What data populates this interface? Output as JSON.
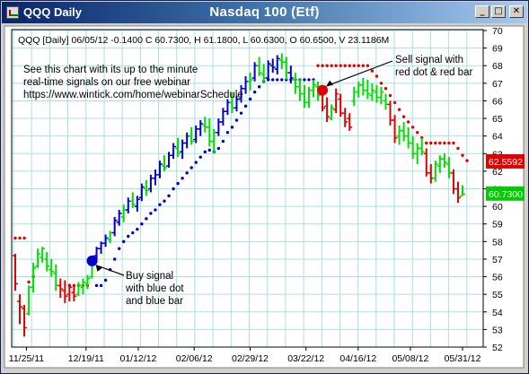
{
  "window": {
    "title_left": "QQQ Daily",
    "title_center": "Nasdaq 100 (Etf)",
    "buttons": {
      "minimize": "_",
      "maximize": "□",
      "close": "✕"
    },
    "colors": {
      "titlebar_start": "#0a246a",
      "titlebar_end": "#a6caf0",
      "grid": "#a8e0e0"
    }
  },
  "chart_data": {
    "type": "ohlc",
    "symbol": "QQQ",
    "info_line": "QQQ [Daily] 06/05/12  -0.1400 C 60.7300, H 61.1800, L 60.6300, O 60.6500, V 23.1186M",
    "annotations": {
      "webinar": [
        "See this chart with its up to the minute",
        "real-time signals on our free webinar",
        "https://www.wintick.com/home/webinarSchedule"
      ],
      "sell": [
        "Sell signal with",
        "red dot & red bar"
      ],
      "buy": [
        "Buy signal",
        "with blue dot",
        "and blue bar"
      ]
    },
    "ylim": [
      52,
      70
    ],
    "y_ticks": [
      "70",
      "69",
      "68",
      "67",
      "66",
      "65",
      "64",
      "63",
      "62",
      "61",
      "60",
      "59",
      "58",
      "57",
      "56",
      "55",
      "54",
      "53",
      "52"
    ],
    "x_ticks": [
      "11/25/11",
      "12/19/11",
      "01/12/12",
      "02/06/12",
      "02/29/12",
      "03/22/12",
      "04/16/12",
      "05/08/12",
      "05/31/12"
    ],
    "price_labels": [
      {
        "text": "62.5592",
        "value": 62.5592,
        "color": "#e00000"
      },
      {
        "text": "60.7300",
        "value": 60.73,
        "color": "#00cc00"
      }
    ],
    "bar_colors": {
      "up": "#00dd00",
      "down": "#e00000",
      "trend": "#0000cc",
      "red_dot": "#e00000",
      "blue_dot": "#0000cc"
    },
    "buy_signal": {
      "index": 17,
      "value": 56.9
    },
    "sell_signal": {
      "index": 68,
      "value": 66.6
    },
    "bars": [
      {
        "o": 57.2,
        "h": 57.3,
        "l": 55.2,
        "c": 55.6,
        "col": "d"
      },
      {
        "o": 54.6,
        "h": 55.0,
        "l": 53.3,
        "c": 54.3,
        "col": "d"
      },
      {
        "o": 54.2,
        "h": 54.4,
        "l": 52.6,
        "c": 53.1,
        "col": "d"
      },
      {
        "o": 53.9,
        "h": 55.5,
        "l": 53.8,
        "c": 55.4,
        "col": "u"
      },
      {
        "o": 55.4,
        "h": 56.8,
        "l": 55.1,
        "c": 56.5,
        "col": "u"
      },
      {
        "o": 56.6,
        "h": 57.6,
        "l": 56.5,
        "c": 57.3,
        "col": "u"
      },
      {
        "o": 57.1,
        "h": 57.7,
        "l": 56.8,
        "c": 57.6,
        "col": "u"
      },
      {
        "o": 57.0,
        "h": 57.4,
        "l": 56.3,
        "c": 56.6,
        "col": "u"
      },
      {
        "o": 56.4,
        "h": 57.0,
        "l": 56.0,
        "c": 56.3,
        "col": "u"
      },
      {
        "o": 56.2,
        "h": 56.7,
        "l": 55.2,
        "c": 55.5,
        "col": "u"
      },
      {
        "o": 55.5,
        "h": 55.9,
        "l": 54.8,
        "c": 55.3,
        "col": "d"
      },
      {
        "o": 55.2,
        "h": 55.8,
        "l": 54.5,
        "c": 54.9,
        "col": "d"
      },
      {
        "o": 55.0,
        "h": 55.6,
        "l": 54.6,
        "c": 55.4,
        "col": "d"
      },
      {
        "o": 55.1,
        "h": 55.5,
        "l": 54.6,
        "c": 54.9,
        "col": "d"
      },
      {
        "o": 55.0,
        "h": 55.7,
        "l": 54.9,
        "c": 55.5,
        "col": "u"
      },
      {
        "o": 55.4,
        "h": 55.9,
        "l": 55.0,
        "c": 55.7,
        "col": "u"
      },
      {
        "o": 55.6,
        "h": 56.1,
        "l": 55.3,
        "c": 55.9,
        "col": "u"
      },
      {
        "o": 56.0,
        "h": 57.2,
        "l": 55.9,
        "c": 57.1,
        "col": "u"
      },
      {
        "o": 57.2,
        "h": 57.7,
        "l": 56.8,
        "c": 57.6,
        "col": "b"
      },
      {
        "o": 57.6,
        "h": 58.0,
        "l": 57.3,
        "c": 57.9,
        "col": "b"
      },
      {
        "o": 57.9,
        "h": 58.4,
        "l": 57.7,
        "c": 58.2,
        "col": "b"
      },
      {
        "o": 58.1,
        "h": 58.6,
        "l": 57.9,
        "c": 58.5,
        "col": "u"
      },
      {
        "o": 58.5,
        "h": 59.4,
        "l": 58.3,
        "c": 59.2,
        "col": "b"
      },
      {
        "o": 59.1,
        "h": 59.8,
        "l": 58.9,
        "c": 59.6,
        "col": "b"
      },
      {
        "o": 59.4,
        "h": 60.1,
        "l": 59.1,
        "c": 59.8,
        "col": "u"
      },
      {
        "o": 59.8,
        "h": 60.5,
        "l": 59.6,
        "c": 60.3,
        "col": "b"
      },
      {
        "o": 60.3,
        "h": 60.8,
        "l": 59.9,
        "c": 60.1,
        "col": "u"
      },
      {
        "o": 60.0,
        "h": 60.6,
        "l": 59.7,
        "c": 60.4,
        "col": "b"
      },
      {
        "o": 60.5,
        "h": 61.3,
        "l": 60.3,
        "c": 61.1,
        "col": "b"
      },
      {
        "o": 61.0,
        "h": 61.5,
        "l": 60.6,
        "c": 60.9,
        "col": "u"
      },
      {
        "o": 61.0,
        "h": 61.8,
        "l": 60.8,
        "c": 61.6,
        "col": "b"
      },
      {
        "o": 61.6,
        "h": 62.1,
        "l": 61.2,
        "c": 61.8,
        "col": "b"
      },
      {
        "o": 61.8,
        "h": 62.6,
        "l": 61.6,
        "c": 62.4,
        "col": "b"
      },
      {
        "o": 62.3,
        "h": 62.9,
        "l": 62.0,
        "c": 62.2,
        "col": "u"
      },
      {
        "o": 62.3,
        "h": 63.1,
        "l": 62.2,
        "c": 62.9,
        "col": "b"
      },
      {
        "o": 62.9,
        "h": 63.6,
        "l": 62.7,
        "c": 63.4,
        "col": "b"
      },
      {
        "o": 63.3,
        "h": 63.9,
        "l": 62.8,
        "c": 63.0,
        "col": "u"
      },
      {
        "o": 63.1,
        "h": 63.8,
        "l": 62.7,
        "c": 63.6,
        "col": "b"
      },
      {
        "o": 63.6,
        "h": 64.2,
        "l": 63.3,
        "c": 64.0,
        "col": "b"
      },
      {
        "o": 64.0,
        "h": 64.5,
        "l": 63.5,
        "c": 63.7,
        "col": "u"
      },
      {
        "o": 63.8,
        "h": 64.6,
        "l": 63.6,
        "c": 64.4,
        "col": "b"
      },
      {
        "o": 64.4,
        "h": 64.9,
        "l": 64.0,
        "c": 64.7,
        "col": "b"
      },
      {
        "o": 64.6,
        "h": 65.1,
        "l": 64.2,
        "c": 64.5,
        "col": "u"
      },
      {
        "o": 64.5,
        "h": 65.0,
        "l": 63.4,
        "c": 63.7,
        "col": "u"
      },
      {
        "o": 63.7,
        "h": 64.4,
        "l": 63.0,
        "c": 64.2,
        "col": "u"
      },
      {
        "o": 64.2,
        "h": 65.0,
        "l": 64.0,
        "c": 64.8,
        "col": "b"
      },
      {
        "o": 64.8,
        "h": 65.6,
        "l": 64.6,
        "c": 65.4,
        "col": "b"
      },
      {
        "o": 65.4,
        "h": 66.1,
        "l": 65.2,
        "c": 65.9,
        "col": "b"
      },
      {
        "o": 65.9,
        "h": 66.5,
        "l": 65.3,
        "c": 65.6,
        "col": "u"
      },
      {
        "o": 65.6,
        "h": 66.3,
        "l": 65.4,
        "c": 66.1,
        "col": "b"
      },
      {
        "o": 66.1,
        "h": 66.9,
        "l": 65.9,
        "c": 66.7,
        "col": "b"
      },
      {
        "o": 66.7,
        "h": 67.4,
        "l": 66.4,
        "c": 67.1,
        "col": "b"
      },
      {
        "o": 67.1,
        "h": 67.6,
        "l": 66.6,
        "c": 67.2,
        "col": "u"
      },
      {
        "o": 67.3,
        "h": 68.2,
        "l": 67.1,
        "c": 68.0,
        "col": "b"
      },
      {
        "o": 68.0,
        "h": 68.5,
        "l": 67.4,
        "c": 67.6,
        "col": "u"
      },
      {
        "o": 67.5,
        "h": 68.1,
        "l": 67.0,
        "c": 67.3,
        "col": "u"
      },
      {
        "o": 67.3,
        "h": 68.3,
        "l": 67.2,
        "c": 68.1,
        "col": "b"
      },
      {
        "o": 68.0,
        "h": 68.4,
        "l": 67.6,
        "c": 67.9,
        "col": "b"
      },
      {
        "o": 67.8,
        "h": 68.6,
        "l": 67.5,
        "c": 68.4,
        "col": "b"
      },
      {
        "o": 68.3,
        "h": 68.7,
        "l": 67.8,
        "c": 68.2,
        "col": "u"
      },
      {
        "o": 68.2,
        "h": 68.5,
        "l": 67.2,
        "c": 67.6,
        "col": "u"
      },
      {
        "o": 67.6,
        "h": 68.0,
        "l": 67.0,
        "c": 67.3,
        "col": "b"
      },
      {
        "o": 67.2,
        "h": 67.6,
        "l": 66.4,
        "c": 66.8,
        "col": "u"
      },
      {
        "o": 66.8,
        "h": 67.3,
        "l": 66.0,
        "c": 66.4,
        "col": "u"
      },
      {
        "o": 66.4,
        "h": 66.9,
        "l": 65.6,
        "c": 65.9,
        "col": "u"
      },
      {
        "o": 65.9,
        "h": 66.8,
        "l": 65.6,
        "c": 66.6,
        "col": "u"
      },
      {
        "o": 66.6,
        "h": 67.2,
        "l": 66.2,
        "c": 66.9,
        "col": "u"
      },
      {
        "o": 66.8,
        "h": 67.1,
        "l": 66.0,
        "c": 66.3,
        "col": "u"
      },
      {
        "o": 66.5,
        "h": 66.8,
        "l": 65.4,
        "c": 65.6,
        "col": "d"
      },
      {
        "o": 65.7,
        "h": 66.2,
        "l": 64.8,
        "c": 65.1,
        "col": "d"
      },
      {
        "o": 65.0,
        "h": 65.8,
        "l": 64.9,
        "c": 65.6,
        "col": "u"
      },
      {
        "o": 65.5,
        "h": 66.7,
        "l": 65.3,
        "c": 66.4,
        "col": "d"
      },
      {
        "o": 66.1,
        "h": 66.4,
        "l": 65.1,
        "c": 65.3,
        "col": "d"
      },
      {
        "o": 65.3,
        "h": 65.6,
        "l": 64.5,
        "c": 64.8,
        "col": "d"
      },
      {
        "o": 65.0,
        "h": 65.3,
        "l": 64.3,
        "c": 64.5,
        "col": "d"
      },
      {
        "o": 66.0,
        "h": 66.8,
        "l": 65.7,
        "c": 66.5,
        "col": "u"
      },
      {
        "o": 66.5,
        "h": 67.1,
        "l": 66.2,
        "c": 66.9,
        "col": "u"
      },
      {
        "o": 66.9,
        "h": 67.3,
        "l": 66.3,
        "c": 66.6,
        "col": "u"
      },
      {
        "o": 66.6,
        "h": 67.2,
        "l": 66.1,
        "c": 66.4,
        "col": "u"
      },
      {
        "o": 66.3,
        "h": 67.0,
        "l": 66.0,
        "c": 66.6,
        "col": "u"
      },
      {
        "o": 66.5,
        "h": 66.9,
        "l": 65.9,
        "c": 66.2,
        "col": "u"
      },
      {
        "o": 66.2,
        "h": 66.8,
        "l": 65.8,
        "c": 66.5,
        "col": "u"
      },
      {
        "o": 66.0,
        "h": 66.4,
        "l": 65.5,
        "c": 65.8,
        "col": "u"
      },
      {
        "o": 65.8,
        "h": 66.0,
        "l": 64.6,
        "c": 64.9,
        "col": "d"
      },
      {
        "o": 64.9,
        "h": 65.2,
        "l": 63.6,
        "c": 63.9,
        "col": "d"
      },
      {
        "o": 64.0,
        "h": 64.6,
        "l": 63.5,
        "c": 64.3,
        "col": "u"
      },
      {
        "o": 64.3,
        "h": 64.8,
        "l": 63.7,
        "c": 64.0,
        "col": "u"
      },
      {
        "o": 64.0,
        "h": 64.5,
        "l": 63.3,
        "c": 63.6,
        "col": "u"
      },
      {
        "o": 63.6,
        "h": 64.0,
        "l": 62.7,
        "c": 63.0,
        "col": "u"
      },
      {
        "o": 63.0,
        "h": 63.6,
        "l": 62.4,
        "c": 63.3,
        "col": "u"
      },
      {
        "o": 63.3,
        "h": 63.9,
        "l": 62.9,
        "c": 63.1,
        "col": "u"
      },
      {
        "o": 63.0,
        "h": 63.3,
        "l": 61.7,
        "c": 61.9,
        "col": "d"
      },
      {
        "o": 61.9,
        "h": 62.4,
        "l": 61.3,
        "c": 61.6,
        "col": "d"
      },
      {
        "o": 61.6,
        "h": 62.6,
        "l": 61.4,
        "c": 62.4,
        "col": "u"
      },
      {
        "o": 62.3,
        "h": 62.9,
        "l": 61.9,
        "c": 62.7,
        "col": "u"
      },
      {
        "o": 62.7,
        "h": 63.0,
        "l": 62.2,
        "c": 62.5,
        "col": "u"
      },
      {
        "o": 62.4,
        "h": 62.8,
        "l": 61.6,
        "c": 61.9,
        "col": "u"
      },
      {
        "o": 61.9,
        "h": 62.1,
        "l": 60.7,
        "c": 61.0,
        "col": "d"
      },
      {
        "o": 61.0,
        "h": 61.4,
        "l": 60.2,
        "c": 60.5,
        "col": "d"
      },
      {
        "o": 60.6,
        "h": 61.2,
        "l": 60.6,
        "c": 60.7,
        "col": "u"
      }
    ],
    "trend_dots": [
      {
        "i": 0,
        "v": 58.2,
        "col": "r"
      },
      {
        "i": 1,
        "v": 58.2,
        "col": "r"
      },
      {
        "i": 2,
        "v": 58.2,
        "col": "r"
      },
      {
        "i": 3,
        "v": 55.7,
        "col": "r"
      },
      {
        "i": 4,
        "v": 56.0,
        "col": "r"
      },
      {
        "i": 12,
        "v": 55.5,
        "col": "r"
      },
      {
        "i": 13,
        "v": 55.5,
        "col": "r"
      },
      {
        "i": 14,
        "v": 55.5,
        "col": "r"
      },
      {
        "i": 15,
        "v": 55.5,
        "col": "r"
      },
      {
        "i": 16,
        "v": 55.5,
        "col": "r"
      },
      {
        "i": 18,
        "v": 55.5,
        "col": "b"
      },
      {
        "i": 19,
        "v": 55.5,
        "col": "b"
      },
      {
        "i": 20,
        "v": 55.8,
        "col": "b"
      },
      {
        "i": 21,
        "v": 56.4,
        "col": "b"
      },
      {
        "i": 22,
        "v": 57.0,
        "col": "b"
      },
      {
        "i": 23,
        "v": 57.6,
        "col": "b"
      },
      {
        "i": 24,
        "v": 58.0,
        "col": "b"
      },
      {
        "i": 25,
        "v": 58.3,
        "col": "b"
      },
      {
        "i": 26,
        "v": 58.5,
        "col": "b"
      },
      {
        "i": 27,
        "v": 58.7,
        "col": "b"
      },
      {
        "i": 28,
        "v": 59.0,
        "col": "b"
      },
      {
        "i": 29,
        "v": 59.3,
        "col": "b"
      },
      {
        "i": 30,
        "v": 59.6,
        "col": "b"
      },
      {
        "i": 31,
        "v": 59.8,
        "col": "b"
      },
      {
        "i": 32,
        "v": 60.1,
        "col": "b"
      },
      {
        "i": 33,
        "v": 60.3,
        "col": "b"
      },
      {
        "i": 34,
        "v": 60.6,
        "col": "b"
      },
      {
        "i": 35,
        "v": 61.0,
        "col": "b"
      },
      {
        "i": 36,
        "v": 61.3,
        "col": "b"
      },
      {
        "i": 37,
        "v": 61.6,
        "col": "b"
      },
      {
        "i": 38,
        "v": 61.9,
        "col": "b"
      },
      {
        "i": 39,
        "v": 62.2,
        "col": "b"
      },
      {
        "i": 40,
        "v": 62.5,
        "col": "b"
      },
      {
        "i": 41,
        "v": 62.8,
        "col": "b"
      },
      {
        "i": 42,
        "v": 63.1,
        "col": "b"
      },
      {
        "i": 43,
        "v": 63.2,
        "col": "b"
      },
      {
        "i": 44,
        "v": 63.1,
        "col": "b"
      },
      {
        "i": 45,
        "v": 63.3,
        "col": "b"
      },
      {
        "i": 46,
        "v": 63.7,
        "col": "b"
      },
      {
        "i": 47,
        "v": 64.2,
        "col": "b"
      },
      {
        "i": 48,
        "v": 64.5,
        "col": "b"
      },
      {
        "i": 49,
        "v": 64.9,
        "col": "b"
      },
      {
        "i": 50,
        "v": 65.3,
        "col": "b"
      },
      {
        "i": 51,
        "v": 65.7,
        "col": "b"
      },
      {
        "i": 52,
        "v": 66.1,
        "col": "b"
      },
      {
        "i": 53,
        "v": 66.5,
        "col": "b"
      },
      {
        "i": 54,
        "v": 66.8,
        "col": "b"
      },
      {
        "i": 55,
        "v": 67.1,
        "col": "b"
      },
      {
        "i": 56,
        "v": 67.2,
        "col": "b"
      },
      {
        "i": 57,
        "v": 67.2,
        "col": "b"
      },
      {
        "i": 58,
        "v": 67.2,
        "col": "b"
      },
      {
        "i": 59,
        "v": 67.2,
        "col": "b"
      },
      {
        "i": 60,
        "v": 67.2,
        "col": "b"
      },
      {
        "i": 61,
        "v": 67.2,
        "col": "b"
      },
      {
        "i": 62,
        "v": 67.2,
        "col": "b"
      },
      {
        "i": 63,
        "v": 67.2,
        "col": "b"
      },
      {
        "i": 64,
        "v": 67.2,
        "col": "b"
      },
      {
        "i": 65,
        "v": 67.2,
        "col": "b"
      },
      {
        "i": 66,
        "v": 67.2,
        "col": "b"
      },
      {
        "i": 67,
        "v": 68.0,
        "col": "r"
      },
      {
        "i": 68,
        "v": 68.0,
        "col": "r"
      },
      {
        "i": 69,
        "v": 68.0,
        "col": "r"
      },
      {
        "i": 70,
        "v": 68.0,
        "col": "r"
      },
      {
        "i": 71,
        "v": 68.0,
        "col": "r"
      },
      {
        "i": 72,
        "v": 68.0,
        "col": "r"
      },
      {
        "i": 73,
        "v": 68.0,
        "col": "r"
      },
      {
        "i": 74,
        "v": 68.0,
        "col": "r"
      },
      {
        "i": 75,
        "v": 68.0,
        "col": "r"
      },
      {
        "i": 76,
        "v": 68.0,
        "col": "r"
      },
      {
        "i": 77,
        "v": 68.0,
        "col": "r"
      },
      {
        "i": 78,
        "v": 68.0,
        "col": "r"
      },
      {
        "i": 79,
        "v": 67.7,
        "col": "r"
      },
      {
        "i": 80,
        "v": 67.4,
        "col": "r"
      },
      {
        "i": 81,
        "v": 67.0,
        "col": "r"
      },
      {
        "i": 82,
        "v": 66.7,
        "col": "r"
      },
      {
        "i": 83,
        "v": 66.3,
        "col": "r"
      },
      {
        "i": 84,
        "v": 65.9,
        "col": "r"
      },
      {
        "i": 85,
        "v": 65.5,
        "col": "r"
      },
      {
        "i": 86,
        "v": 65.1,
        "col": "r"
      },
      {
        "i": 87,
        "v": 64.8,
        "col": "r"
      },
      {
        "i": 88,
        "v": 64.5,
        "col": "r"
      },
      {
        "i": 89,
        "v": 64.2,
        "col": "r"
      },
      {
        "i": 90,
        "v": 63.9,
        "col": "r"
      },
      {
        "i": 91,
        "v": 63.6,
        "col": "r"
      },
      {
        "i": 92,
        "v": 63.6,
        "col": "r"
      },
      {
        "i": 93,
        "v": 63.6,
        "col": "r"
      },
      {
        "i": 94,
        "v": 63.6,
        "col": "r"
      },
      {
        "i": 95,
        "v": 63.6,
        "col": "r"
      },
      {
        "i": 96,
        "v": 63.6,
        "col": "r"
      },
      {
        "i": 97,
        "v": 63.6,
        "col": "r"
      },
      {
        "i": 98,
        "v": 63.3,
        "col": "r"
      },
      {
        "i": 99,
        "v": 62.9,
        "col": "r"
      },
      {
        "i": 100,
        "v": 62.6,
        "col": "r"
      }
    ]
  }
}
